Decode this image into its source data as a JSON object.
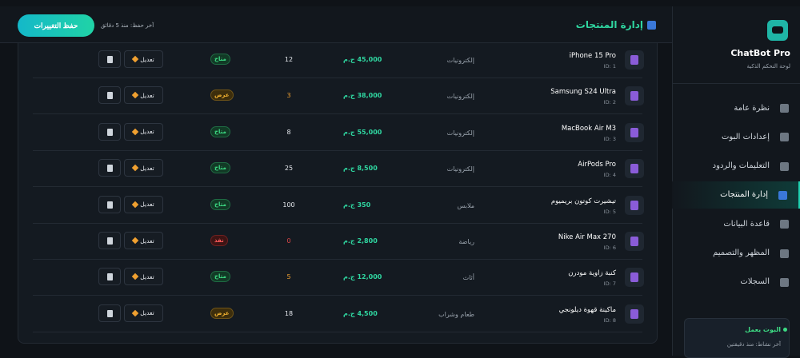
{
  "sidebar": {
    "brand": "ChatBot Pro",
    "tagline": "لوحة التحكم الذكية",
    "nav": [
      "نظرة عامة",
      "إعدادات البوت",
      "التعليمات والردود",
      "إدارة المنتجات",
      "قاعدة البيانات",
      "المظهر والتصميم",
      "السجلات"
    ],
    "active": 3,
    "status": {
      "title": "البوت يعمل",
      "detail": "آخر نشاط: منذ دقيقتين"
    }
  },
  "header": {
    "title": "إدارة المنتجات",
    "last_saved": "آخر حفظ: منذ 5 دقائق",
    "save_button": "حفظ التغييرات"
  },
  "table": {
    "edit_label": "تعديل",
    "rows": [
      {
        "name": "iPhone 15 Pro",
        "id": "ID: 1",
        "category": "إلكترونيات",
        "price": "45,000 ج.م",
        "stock": 12,
        "stock_color": "#e6e9ee",
        "status": "متاح",
        "status_color": "green"
      },
      {
        "name": "Samsung S24 Ultra",
        "id": "ID: 2",
        "category": "إلكترونيات",
        "price": "38,000 ج.م",
        "stock": 3,
        "stock_color": "#f0a030",
        "status": "عرض",
        "status_color": "amber"
      },
      {
        "name": "MacBook Air M3",
        "id": "ID: 3",
        "category": "إلكترونيات",
        "price": "55,000 ج.م",
        "stock": 8,
        "stock_color": "#e6e9ee",
        "status": "متاح",
        "status_color": "green"
      },
      {
        "name": "AirPods Pro",
        "id": "ID: 4",
        "category": "إلكترونيات",
        "price": "8,500 ج.م",
        "stock": 25,
        "stock_color": "#e6e9ee",
        "status": "متاح",
        "status_color": "green"
      },
      {
        "name": "تيشيرت كوتون بريميوم",
        "id": "ID: 5",
        "category": "ملابس",
        "price": "350 ج.م",
        "stock": 100,
        "stock_color": "#e6e9ee",
        "status": "متاح",
        "status_color": "green"
      },
      {
        "name": "Nike Air Max 270",
        "id": "ID: 6",
        "category": "رياضة",
        "price": "2,800 ج.م",
        "stock": 0,
        "stock_color": "#e04848",
        "status": "نفذ",
        "status_color": "red"
      },
      {
        "name": "كنبة زاوية مودرن",
        "id": "ID: 7",
        "category": "أثاث",
        "price": "12,000 ج.م",
        "stock": 5,
        "stock_color": "#f0a030",
        "status": "متاح",
        "status_color": "green"
      },
      {
        "name": "ماكينة قهوة ديلونجي",
        "id": "ID: 8",
        "category": "طعام وشراب",
        "price": "4,500 ج.م",
        "stock": 18,
        "stock_color": "#e6e9ee",
        "status": "عرض",
        "status_color": "amber"
      }
    ]
  }
}
